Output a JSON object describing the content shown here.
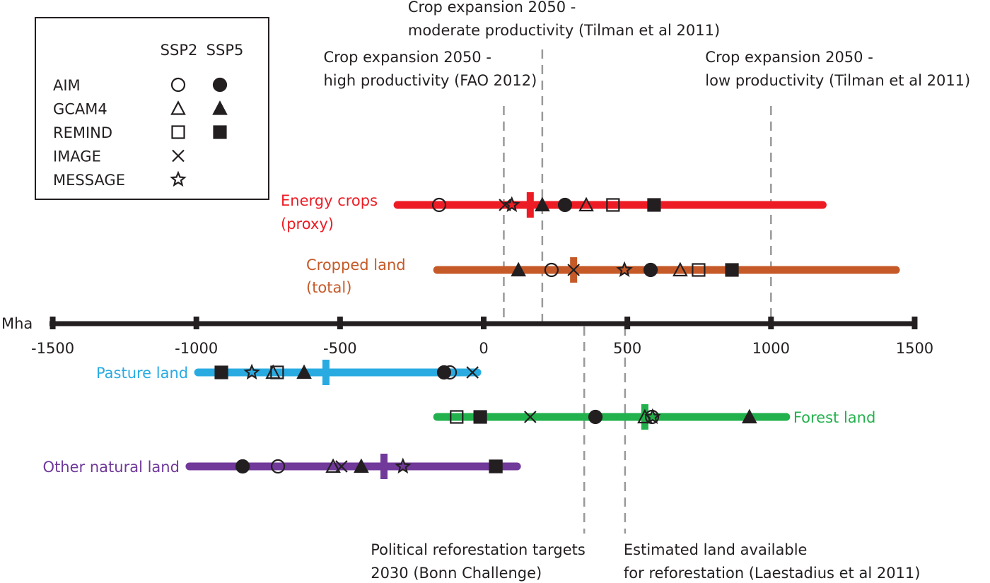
{
  "chart_data": {
    "type": "scatter",
    "unit_label": "Mha",
    "xlim": [
      -1500,
      1500
    ],
    "ticks": [
      -1500,
      -1000,
      -500,
      0,
      500,
      1000,
      1500
    ],
    "tick_labels": [
      "-1500",
      "-1000",
      "-500",
      "0",
      "500",
      "1000",
      "1500"
    ],
    "legend": {
      "columns": [
        "SSP2",
        "SSP5"
      ],
      "models": [
        {
          "name": "AIM",
          "marker": "circle",
          "ssp2": true,
          "ssp5": true
        },
        {
          "name": "GCAM4",
          "marker": "triangle",
          "ssp2": true,
          "ssp5": true
        },
        {
          "name": "REMIND",
          "marker": "square",
          "ssp2": true,
          "ssp5": true
        },
        {
          "name": "IMAGE",
          "marker": "cross",
          "ssp2": true,
          "ssp5": false
        },
        {
          "name": "MESSAGE",
          "marker": "star",
          "ssp2": true,
          "ssp5": false
        }
      ]
    },
    "series": [
      {
        "name": "Energy crops",
        "name2": "(proxy)",
        "color": "#ed1c24",
        "side": "above",
        "range": [
          -300,
          1180
        ],
        "median": 162,
        "points": [
          {
            "model": "AIM",
            "ssp": "SSP2",
            "value": -155
          },
          {
            "model": "IMAGE",
            "ssp": "SSP2",
            "value": 74
          },
          {
            "model": "MESSAGE",
            "ssp": "SSP2",
            "value": 98
          },
          {
            "model": "GCAM4",
            "ssp": "SSP5",
            "value": 204
          },
          {
            "model": "AIM",
            "ssp": "SSP5",
            "value": 283
          },
          {
            "model": "GCAM4",
            "ssp": "SSP2",
            "value": 357
          },
          {
            "model": "REMIND",
            "ssp": "SSP2",
            "value": 450
          },
          {
            "model": "REMIND",
            "ssp": "SSP5",
            "value": 593
          }
        ]
      },
      {
        "name": "Cropped land",
        "name2": "(total)",
        "color": "#c55a28",
        "side": "above",
        "range": [
          -162,
          1435
        ],
        "median": 313,
        "points": [
          {
            "model": "GCAM4",
            "ssp": "SSP5",
            "value": 121
          },
          {
            "model": "AIM",
            "ssp": "SSP2",
            "value": 236
          },
          {
            "model": "IMAGE",
            "ssp": "SSP2",
            "value": 313
          },
          {
            "model": "MESSAGE",
            "ssp": "SSP2",
            "value": 490
          },
          {
            "model": "AIM",
            "ssp": "SSP5",
            "value": 581
          },
          {
            "model": "GCAM4",
            "ssp": "SSP2",
            "value": 684
          },
          {
            "model": "REMIND",
            "ssp": "SSP2",
            "value": 748
          },
          {
            "model": "REMIND",
            "ssp": "SSP5",
            "value": 864
          }
        ]
      },
      {
        "name": "Pasture land",
        "name2": "",
        "color": "#29abe2",
        "side": "left",
        "range": [
          -994,
          -22
        ],
        "median": -549,
        "points": [
          {
            "model": "REMIND",
            "ssp": "SSP5",
            "value": -913
          },
          {
            "model": "MESSAGE",
            "ssp": "SSP2",
            "value": -807
          },
          {
            "model": "GCAM4",
            "ssp": "SSP2",
            "value": -733
          },
          {
            "model": "REMIND",
            "ssp": "SSP2",
            "value": -719
          },
          {
            "model": "GCAM4",
            "ssp": "SSP5",
            "value": -625
          },
          {
            "model": "AIM",
            "ssp": "SSP5",
            "value": -138
          },
          {
            "model": "AIM",
            "ssp": "SSP2",
            "value": -118
          },
          {
            "model": "IMAGE",
            "ssp": "SSP2",
            "value": -39
          }
        ]
      },
      {
        "name": "Forest land",
        "name2": "",
        "color": "#22b14c",
        "side": "right",
        "range": [
          -162,
          1053
        ],
        "median": 561,
        "points": [
          {
            "model": "REMIND",
            "ssp": "SSP2",
            "value": -94
          },
          {
            "model": "REMIND",
            "ssp": "SSP5",
            "value": -12
          },
          {
            "model": "IMAGE",
            "ssp": "SSP2",
            "value": 162
          },
          {
            "model": "AIM",
            "ssp": "SSP5",
            "value": 389
          },
          {
            "model": "GCAM4",
            "ssp": "SSP2",
            "value": 561
          },
          {
            "model": "AIM",
            "ssp": "SSP2",
            "value": 586
          },
          {
            "model": "MESSAGE",
            "ssp": "SSP2",
            "value": 588
          },
          {
            "model": "GCAM4",
            "ssp": "SSP5",
            "value": 925
          }
        ]
      },
      {
        "name": "Other natural land",
        "name2": "",
        "color": "#70399a",
        "side": "left",
        "range": [
          -1024,
          116
        ],
        "median": -347,
        "points": [
          {
            "model": "AIM",
            "ssp": "SSP5",
            "value": -839
          },
          {
            "model": "AIM",
            "ssp": "SSP2",
            "value": -716
          },
          {
            "model": "GCAM4",
            "ssp": "SSP2",
            "value": -524
          },
          {
            "model": "IMAGE",
            "ssp": "SSP2",
            "value": -495
          },
          {
            "model": "GCAM4",
            "ssp": "SSP5",
            "value": -426
          },
          {
            "model": "MESSAGE",
            "ssp": "SSP2",
            "value": -281
          },
          {
            "model": "REMIND",
            "ssp": "SSP2",
            "value": 42
          },
          {
            "model": "REMIND",
            "ssp": "SSP5",
            "value": 42
          }
        ]
      }
    ],
    "reference_lines": [
      {
        "value": 70,
        "side": "top",
        "lines": [
          "Crop expansion 2050 -",
          "high productivity (FAO 2012)"
        ]
      },
      {
        "value": 204,
        "side": "top",
        "lines": [
          "Crop expansion 2050 -",
          "moderate productivity (Tilman et al 2011)"
        ]
      },
      {
        "value": 1000,
        "side": "top",
        "lines": [
          "Crop expansion  2050 -",
          "low productivity (Tilman et al 2011)"
        ]
      },
      {
        "value": 350,
        "side": "bottom",
        "lines": [
          "Political reforestation targets",
          "2030 (Bonn Challenge)"
        ]
      },
      {
        "value": 492,
        "side": "bottom",
        "lines": [
          "Estimated land available",
          "for reforestation (Laestadius et al 2011)"
        ]
      }
    ]
  }
}
